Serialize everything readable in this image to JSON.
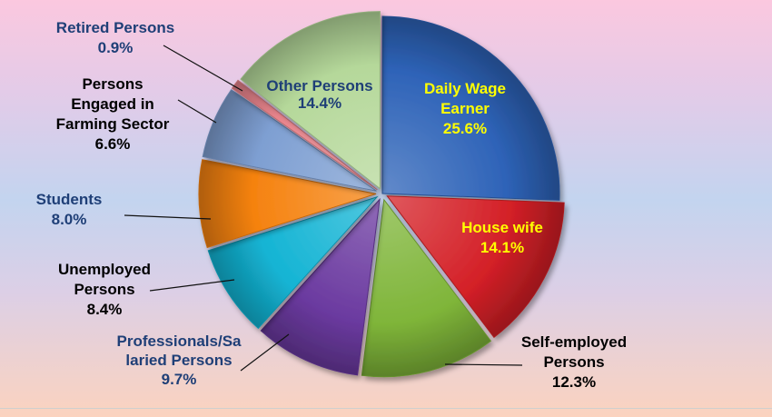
{
  "chart_data": {
    "type": "pie",
    "unit": "%",
    "slices": [
      {
        "label": [
          "Daily Wage",
          "Earner"
        ],
        "value": 25.6,
        "display": "25.6%",
        "color": "#2e63b8",
        "label_color": "#ffff00"
      },
      {
        "label": [
          "House wife"
        ],
        "value": 14.1,
        "display": "14.1%",
        "color": "#d42027",
        "label_color": "#ffff00"
      },
      {
        "label": [
          "Self-employed",
          "Persons"
        ],
        "value": 12.3,
        "display": "12.3%",
        "color": "#7fb539",
        "label_color": "#000000"
      },
      {
        "label": [
          "Professionals/Sa",
          "laried Persons"
        ],
        "value": 9.7,
        "display": "9.7%",
        "color": "#6b3aa0",
        "label_color": "#1f3f77"
      },
      {
        "label": [
          "Unemployed",
          "Persons"
        ],
        "value": 8.4,
        "display": "8.4%",
        "color": "#14b4d4",
        "label_color": "#000000"
      },
      {
        "label": [
          "Students"
        ],
        "value": 8.0,
        "display": "8.0%",
        "color": "#f5820f",
        "label_color": "#1f3f77"
      },
      {
        "label": [
          "Persons",
          "Engaged in",
          "Farming Sector"
        ],
        "value": 6.6,
        "display": "6.6%",
        "color": "#7e9fd2",
        "label_color": "#000000"
      },
      {
        "label": [
          "Retired Persons"
        ],
        "value": 0.9,
        "display": "0.9%",
        "color": "#e8848c",
        "label_color": "#1f3f77"
      },
      {
        "label": [
          "Other Persons"
        ],
        "value": 14.4,
        "display": "14.4%",
        "color": "#b5d89a",
        "label_color": "#1f3f77"
      }
    ]
  }
}
